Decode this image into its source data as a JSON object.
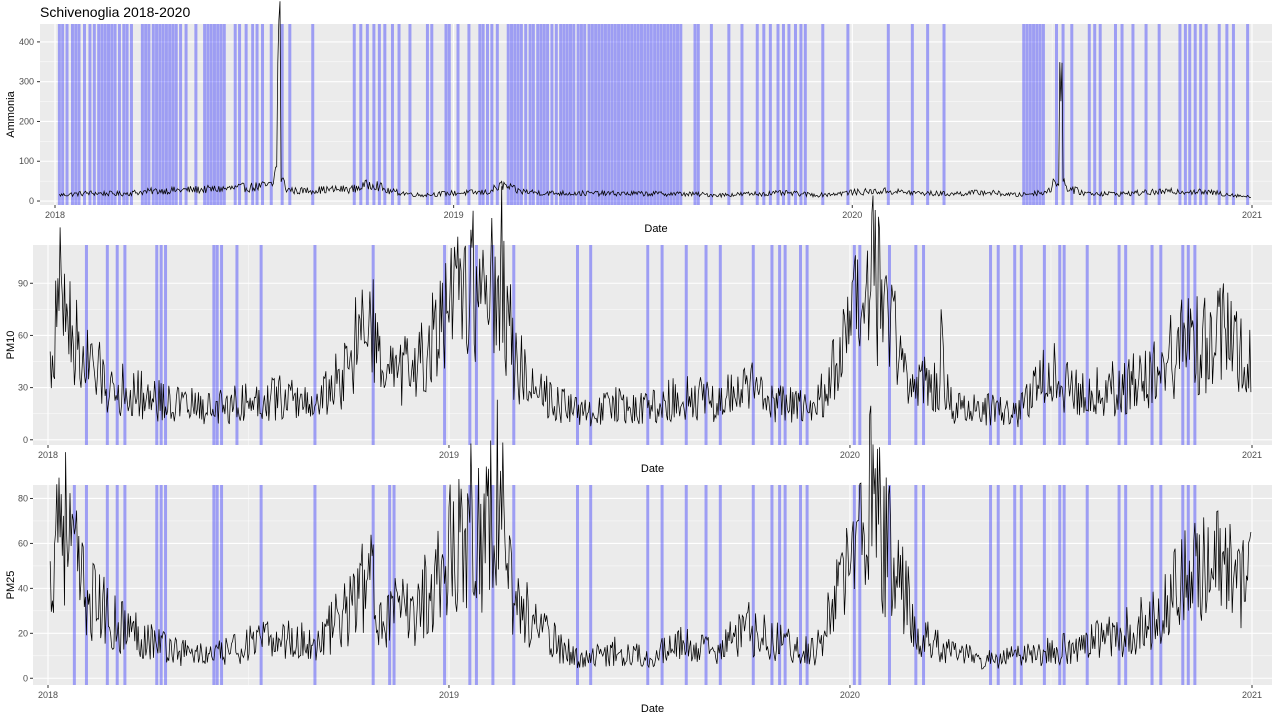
{
  "chart_data": [
    {
      "type": "line",
      "title": "Schivenoglia 2018-2020",
      "xlabel": "Date",
      "ylabel": "Ammonia",
      "xlim": [
        "2018-01-01",
        "2021-01-01"
      ],
      "ylim": [
        -10,
        445
      ],
      "yticks": [
        0,
        100,
        200,
        300,
        400
      ],
      "xticks": [
        "2018",
        "2019",
        "2020",
        "2021"
      ],
      "grid": true,
      "highlight_color": "#3333ff",
      "highlight_dates": [
        "2018-01-05",
        "2018-01-08",
        "2018-01-12",
        "2018-01-17",
        "2018-01-20",
        "2018-01-23",
        "2018-01-28",
        "2018-02-02",
        "2018-02-06",
        "2018-02-10",
        "2018-02-13",
        "2018-02-16",
        "2018-02-19",
        "2018-02-22",
        "2018-02-25",
        "2018-03-01",
        "2018-03-05",
        "2018-03-08",
        "2018-03-12",
        "2018-03-22",
        "2018-03-25",
        "2018-03-28",
        "2018-04-01",
        "2018-04-04",
        "2018-04-07",
        "2018-04-10",
        "2018-04-13",
        "2018-04-16",
        "2018-04-19",
        "2018-04-22",
        "2018-04-26",
        "2018-05-01",
        "2018-05-10",
        "2018-05-18",
        "2018-05-21",
        "2018-05-24",
        "2018-05-27",
        "2018-05-30",
        "2018-06-02",
        "2018-06-05",
        "2018-06-15",
        "2018-06-19",
        "2018-06-25",
        "2018-07-01",
        "2018-07-05",
        "2018-07-10",
        "2018-07-18",
        "2018-07-28",
        "2018-08-04",
        "2018-08-25",
        "2018-10-02",
        "2018-10-08",
        "2018-10-14",
        "2018-10-20",
        "2018-10-25",
        "2018-10-30",
        "2018-11-06",
        "2018-11-12",
        "2018-11-22",
        "2018-12-08",
        "2018-12-12",
        "2018-12-25",
        "2018-12-28",
        "2019-01-05",
        "2019-01-15",
        "2019-01-25",
        "2019-01-28",
        "2019-02-01",
        "2019-02-05",
        "2019-02-10",
        "2019-02-20",
        "2019-02-23",
        "2019-02-26",
        "2019-03-01",
        "2019-03-04",
        "2019-03-08",
        "2019-03-12",
        "2019-03-15",
        "2019-03-19",
        "2019-03-22",
        "2019-03-25",
        "2019-03-28",
        "2019-04-01",
        "2019-04-05",
        "2019-04-09",
        "2019-04-12",
        "2019-04-15",
        "2019-04-18",
        "2019-04-21",
        "2019-04-25",
        "2019-04-28",
        "2019-05-01",
        "2019-05-05",
        "2019-05-08",
        "2019-05-11",
        "2019-05-14",
        "2019-05-17",
        "2019-05-20",
        "2019-05-23",
        "2019-05-26",
        "2019-05-29",
        "2019-06-01",
        "2019-06-04",
        "2019-06-07",
        "2019-06-10",
        "2019-06-13",
        "2019-06-16",
        "2019-06-19",
        "2019-06-22",
        "2019-06-25",
        "2019-06-28",
        "2019-07-01",
        "2019-07-04",
        "2019-07-07",
        "2019-07-10",
        "2019-07-13",
        "2019-07-16",
        "2019-07-19",
        "2019-07-22",
        "2019-07-25",
        "2019-07-28",
        "2019-08-10",
        "2019-08-13",
        "2019-08-25",
        "2019-09-10",
        "2019-09-22",
        "2019-10-06",
        "2019-10-12",
        "2019-10-18",
        "2019-10-25",
        "2019-10-30",
        "2019-11-04",
        "2019-11-10",
        "2019-11-15",
        "2019-11-19",
        "2019-12-05",
        "2019-12-28",
        "2020-02-03",
        "2020-02-25",
        "2020-03-10",
        "2020-03-25",
        "2020-06-06",
        "2020-06-09",
        "2020-06-12",
        "2020-06-15",
        "2020-06-18",
        "2020-06-21",
        "2020-06-24",
        "2020-07-06",
        "2020-07-12",
        "2020-07-20",
        "2020-08-05",
        "2020-08-10",
        "2020-08-15",
        "2020-08-29",
        "2020-09-04",
        "2020-09-14",
        "2020-09-26",
        "2020-10-08",
        "2020-10-27",
        "2020-11-01",
        "2020-11-05",
        "2020-11-10",
        "2020-11-15",
        "2020-11-20",
        "2020-12-02",
        "2020-12-09",
        "2020-12-15",
        "2020-12-28"
      ],
      "x": [
        "2018-01-05",
        "2018-02-01",
        "2018-03-01",
        "2018-04-01",
        "2018-05-01",
        "2018-06-01",
        "2018-07-01",
        "2018-07-20",
        "2018-07-25",
        "2018-07-27",
        "2018-08-01",
        "2018-08-10",
        "2018-09-01",
        "2018-10-01",
        "2018-10-20",
        "2018-11-01",
        "2018-12-01",
        "2019-01-01",
        "2019-02-01",
        "2019-02-15",
        "2019-03-01",
        "2019-03-25",
        "2019-08-01",
        "2019-09-01",
        "2019-10-01",
        "2019-11-01",
        "2019-12-01",
        "2020-01-01",
        "2020-02-01",
        "2020-03-01",
        "2020-04-01",
        "2020-05-01",
        "2020-06-01",
        "2020-07-01",
        "2020-07-10",
        "2020-07-14",
        "2020-07-18",
        "2020-07-25",
        "2020-08-01",
        "2020-09-01",
        "2020-10-01",
        "2020-11-01",
        "2020-12-01",
        "2020-12-31"
      ],
      "values": [
        15,
        20,
        18,
        25,
        28,
        30,
        35,
        40,
        430,
        60,
        30,
        25,
        28,
        30,
        45,
        25,
        15,
        20,
        22,
        40,
        25,
        20,
        18,
        15,
        18,
        20,
        15,
        22,
        25,
        20,
        18,
        22,
        15,
        25,
        295,
        40,
        30,
        25,
        20,
        18,
        22,
        25,
        20,
        10
      ],
      "series": [
        {
          "values_key": "values"
        }
      ]
    },
    {
      "type": "line",
      "xlabel": "Date",
      "ylabel": "PM10",
      "xlim": [
        "2018-01-01",
        "2021-01-01"
      ],
      "ylim": [
        -3,
        112
      ],
      "yticks": [
        0,
        30,
        60,
        90
      ],
      "xticks": [
        "2018",
        "2019",
        "2020",
        "2021"
      ],
      "grid": true,
      "highlight_color": "#3333ff",
      "highlight_dates": [
        "2018-02-05",
        "2018-02-24",
        "2018-03-05",
        "2018-03-12",
        "2018-04-10",
        "2018-04-14",
        "2018-04-18",
        "2018-06-01",
        "2018-06-04",
        "2018-06-08",
        "2018-06-22",
        "2018-07-14",
        "2018-09-01",
        "2018-10-24",
        "2018-12-28",
        "2019-01-20",
        "2019-01-26",
        "2019-02-10",
        "2019-03-01",
        "2019-04-28",
        "2019-05-10",
        "2019-07-01",
        "2019-07-14",
        "2019-08-05",
        "2019-08-23",
        "2019-09-05",
        "2019-10-05",
        "2019-10-22",
        "2019-10-29",
        "2019-11-03",
        "2019-11-17",
        "2019-11-23",
        "2020-01-05",
        "2020-01-10",
        "2020-02-06",
        "2020-03-01",
        "2020-03-08",
        "2020-05-08",
        "2020-05-15",
        "2020-05-30",
        "2020-06-05",
        "2020-06-26",
        "2020-07-10",
        "2020-07-14",
        "2020-08-04",
        "2020-09-02",
        "2020-09-08",
        "2020-10-02",
        "2020-10-10",
        "2020-10-30",
        "2020-11-04",
        "2020-11-10"
      ],
      "x": [
        "2018-01-03",
        "2018-01-12",
        "2018-02-01",
        "2018-03-01",
        "2018-04-01",
        "2018-05-01",
        "2018-06-01",
        "2018-07-01",
        "2018-08-01",
        "2018-09-01",
        "2018-10-01",
        "2018-10-20",
        "2018-11-01",
        "2018-12-01",
        "2019-01-01",
        "2019-01-20",
        "2019-02-01",
        "2019-02-15",
        "2019-03-01",
        "2019-04-01",
        "2019-05-01",
        "2019-06-01",
        "2019-07-01",
        "2019-08-01",
        "2019-09-01",
        "2019-10-01",
        "2019-11-01",
        "2019-12-01",
        "2020-01-01",
        "2020-01-20",
        "2020-02-01",
        "2020-02-10",
        "2020-03-01",
        "2020-03-25",
        "2020-04-01",
        "2020-05-01",
        "2020-06-01",
        "2020-07-01",
        "2020-08-01",
        "2020-09-01",
        "2020-10-01",
        "2020-11-01",
        "2020-12-01",
        "2020-12-31"
      ],
      "values": [
        40,
        85,
        45,
        30,
        25,
        20,
        18,
        22,
        25,
        20,
        40,
        75,
        35,
        40,
        70,
        95,
        80,
        108,
        45,
        25,
        15,
        20,
        18,
        25,
        22,
        30,
        20,
        18,
        60,
        95,
        75,
        65,
        25,
        105,
        20,
        18,
        15,
        40,
        25,
        30,
        35,
        55,
        60,
        50
      ],
      "series": [
        {
          "values_key": "values"
        }
      ]
    },
    {
      "type": "line",
      "xlabel": "Date",
      "ylabel": "PM25",
      "xlim": [
        "2018-01-01",
        "2021-01-01"
      ],
      "ylim": [
        -3,
        86
      ],
      "yticks": [
        0,
        20,
        40,
        60,
        80
      ],
      "xticks": [
        "2018",
        "2019",
        "2020",
        "2021"
      ],
      "grid": true,
      "highlight_color": "#3333ff",
      "highlight_dates": [
        "2018-01-25",
        "2018-02-05",
        "2018-02-24",
        "2018-03-05",
        "2018-03-12",
        "2018-04-10",
        "2018-04-14",
        "2018-04-18",
        "2018-06-01",
        "2018-06-04",
        "2018-06-08",
        "2018-07-14",
        "2018-09-01",
        "2018-10-24",
        "2018-11-08",
        "2018-11-12",
        "2018-12-28",
        "2019-01-20",
        "2019-01-26",
        "2019-02-10",
        "2019-03-01",
        "2019-04-28",
        "2019-05-10",
        "2019-07-01",
        "2019-07-14",
        "2019-08-05",
        "2019-08-23",
        "2019-09-05",
        "2019-10-05",
        "2019-10-22",
        "2019-10-29",
        "2019-11-03",
        "2019-11-17",
        "2019-11-23",
        "2020-01-05",
        "2020-01-10",
        "2020-02-06",
        "2020-03-01",
        "2020-03-08",
        "2020-05-08",
        "2020-05-15",
        "2020-05-30",
        "2020-06-05",
        "2020-06-26",
        "2020-07-10",
        "2020-07-14",
        "2020-08-04",
        "2020-09-02",
        "2020-09-08",
        "2020-10-02",
        "2020-10-10",
        "2020-10-30",
        "2020-11-04",
        "2020-11-10"
      ],
      "x": [
        "2018-01-03",
        "2018-01-10",
        "2018-02-01",
        "2018-03-01",
        "2018-04-01",
        "2018-05-01",
        "2018-06-01",
        "2018-07-01",
        "2018-08-01",
        "2018-09-01",
        "2018-10-01",
        "2018-10-20",
        "2018-11-01",
        "2018-12-01",
        "2019-01-01",
        "2019-01-20",
        "2019-02-01",
        "2019-02-15",
        "2019-03-01",
        "2019-04-01",
        "2019-05-01",
        "2019-06-01",
        "2019-07-01",
        "2019-08-01",
        "2019-09-01",
        "2019-10-01",
        "2019-11-01",
        "2019-12-01",
        "2020-01-01",
        "2020-01-20",
        "2020-02-01",
        "2020-02-10",
        "2020-03-01",
        "2020-04-01",
        "2020-05-01",
        "2020-06-01",
        "2020-07-01",
        "2020-08-01",
        "2020-09-01",
        "2020-10-01",
        "2020-11-01",
        "2020-12-01",
        "2020-12-31"
      ],
      "values": [
        40,
        82,
        40,
        25,
        18,
        12,
        10,
        15,
        18,
        15,
        30,
        45,
        28,
        30,
        55,
        72,
        60,
        85,
        35,
        18,
        8,
        12,
        10,
        15,
        12,
        22,
        15,
        12,
        50,
        80,
        60,
        55,
        20,
        12,
        8,
        10,
        12,
        15,
        20,
        25,
        45,
        50,
        42
      ],
      "series": [
        {
          "values_key": "values"
        }
      ]
    }
  ]
}
